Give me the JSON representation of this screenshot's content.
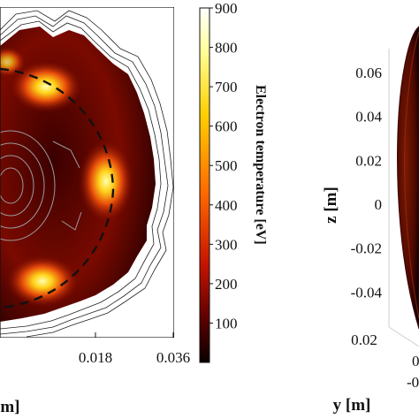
{
  "chart_data": [
    {
      "type": "heatmap",
      "title": "",
      "xlabel": "[m]",
      "ylabel": "",
      "x_ticks": [
        "0.018",
        "0.036"
      ],
      "colorbar": {
        "label": "Electron temperature [eV]",
        "range": [
          0,
          900
        ],
        "ticks": [
          "900",
          "800",
          "700",
          "600",
          "500",
          "400",
          "300",
          "200",
          "100"
        ],
        "colormap": "hot"
      },
      "hot_spots": [
        {
          "name": "top",
          "intensity": 1.0
        },
        {
          "name": "right",
          "intensity": 1.0
        },
        {
          "name": "bottom",
          "intensity": 1.0
        },
        {
          "name": "upper-left",
          "intensity": 0.75
        }
      ],
      "overlay": {
        "dashed_circle": true,
        "contours": true
      }
    },
    {
      "type": "scatter",
      "title": "",
      "xlabel": "y [m]",
      "ylabel": "z [m]",
      "y_ticks": [
        "0.06",
        "0.04",
        "0.02",
        "0",
        "-0.02",
        "-0.04"
      ],
      "x_ticks": [
        "0.02",
        "0",
        "-0"
      ]
    }
  ],
  "colors": {
    "dashed_line": "#111111",
    "contour": "#222222"
  }
}
